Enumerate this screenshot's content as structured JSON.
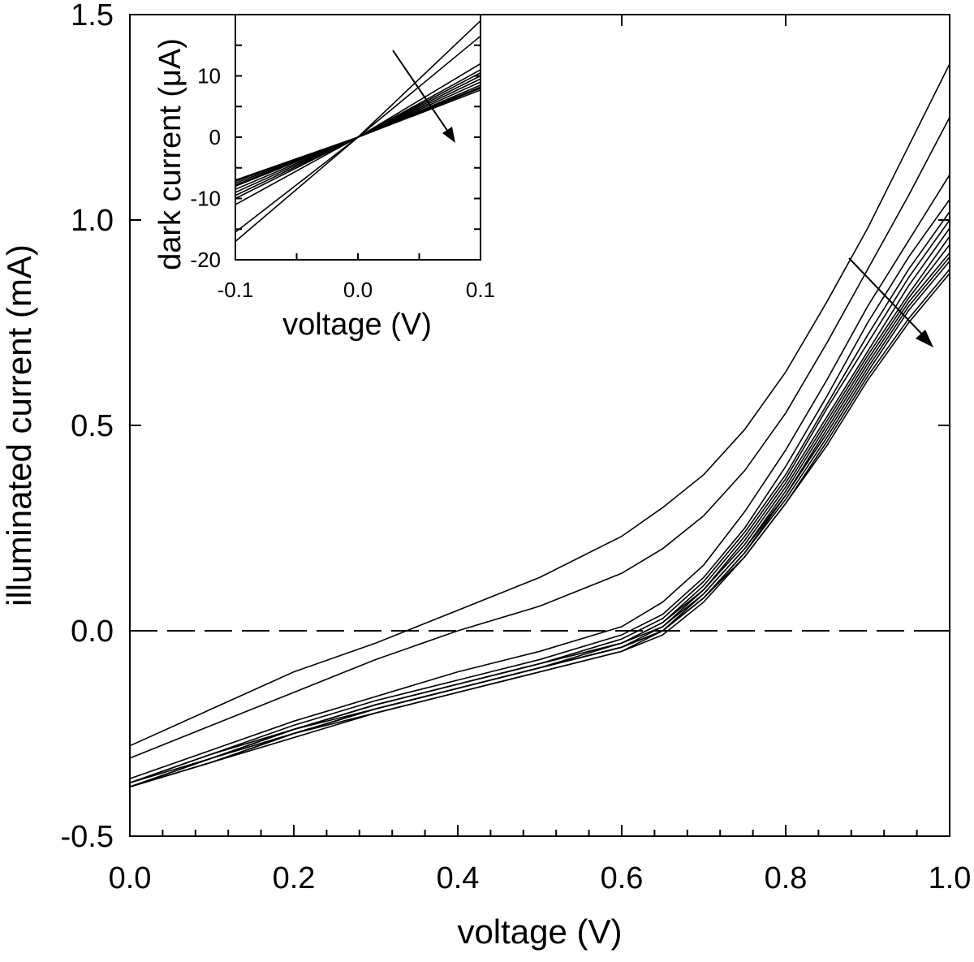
{
  "chart_data": [
    {
      "type": "line",
      "xlabel": "voltage (V)",
      "ylabel": "illuminated current (mA)",
      "xlim": [
        0.0,
        1.0
      ],
      "ylim": [
        -0.5,
        1.5
      ],
      "x_ticks": [
        "0.0",
        "0.2",
        "0.4",
        "0.6",
        "0.8",
        "1.0"
      ],
      "y_ticks": [
        "-0.5",
        "0.0",
        "0.5",
        "1.0",
        "1.5"
      ],
      "reference_line": {
        "y": 0.0,
        "style": "dashed"
      },
      "annotation": "arrow indicating trend across curves",
      "x": [
        0.0,
        0.1,
        0.2,
        0.3,
        0.4,
        0.5,
        0.6,
        0.65,
        0.7,
        0.75,
        0.8,
        0.85,
        0.9,
        0.95,
        1.0
      ],
      "series": [
        {
          "values": [
            -0.28,
            -0.19,
            -0.1,
            -0.03,
            0.05,
            0.13,
            0.23,
            0.3,
            0.38,
            0.49,
            0.63,
            0.8,
            0.98,
            1.18,
            1.38
          ]
        },
        {
          "values": [
            -0.31,
            -0.23,
            -0.15,
            -0.07,
            0.0,
            0.06,
            0.14,
            0.2,
            0.28,
            0.39,
            0.53,
            0.7,
            0.88,
            1.06,
            1.25
          ]
        },
        {
          "values": [
            -0.36,
            -0.29,
            -0.22,
            -0.16,
            -0.1,
            -0.05,
            0.01,
            0.07,
            0.16,
            0.29,
            0.44,
            0.61,
            0.79,
            0.95,
            1.11
          ]
        },
        {
          "values": [
            -0.37,
            -0.3,
            -0.23,
            -0.17,
            -0.12,
            -0.07,
            -0.01,
            0.04,
            0.13,
            0.25,
            0.4,
            0.57,
            0.75,
            0.91,
            1.05
          ]
        },
        {
          "values": [
            -0.37,
            -0.3,
            -0.24,
            -0.18,
            -0.13,
            -0.08,
            -0.02,
            0.03,
            0.12,
            0.24,
            0.38,
            0.55,
            0.72,
            0.88,
            1.02
          ]
        },
        {
          "values": [
            -0.37,
            -0.31,
            -0.24,
            -0.18,
            -0.13,
            -0.08,
            -0.03,
            0.02,
            0.11,
            0.23,
            0.37,
            0.54,
            0.7,
            0.86,
            1.0
          ]
        },
        {
          "values": [
            -0.38,
            -0.31,
            -0.24,
            -0.18,
            -0.13,
            -0.08,
            -0.03,
            0.02,
            0.1,
            0.22,
            0.36,
            0.52,
            0.68,
            0.84,
            0.98
          ]
        },
        {
          "values": [
            -0.38,
            -0.31,
            -0.24,
            -0.19,
            -0.14,
            -0.09,
            -0.03,
            0.01,
            0.1,
            0.21,
            0.35,
            0.51,
            0.67,
            0.82,
            0.96
          ]
        },
        {
          "values": [
            -0.38,
            -0.31,
            -0.25,
            -0.19,
            -0.14,
            -0.09,
            -0.04,
            0.01,
            0.09,
            0.2,
            0.34,
            0.5,
            0.66,
            0.81,
            0.94
          ]
        },
        {
          "values": [
            -0.38,
            -0.31,
            -0.25,
            -0.19,
            -0.14,
            -0.09,
            -0.04,
            0.0,
            0.09,
            0.2,
            0.33,
            0.49,
            0.65,
            0.8,
            0.92
          ]
        },
        {
          "values": [
            -0.38,
            -0.32,
            -0.25,
            -0.19,
            -0.14,
            -0.09,
            -0.04,
            0.0,
            0.08,
            0.19,
            0.33,
            0.48,
            0.64,
            0.79,
            0.91
          ]
        },
        {
          "values": [
            -0.38,
            -0.32,
            -0.25,
            -0.19,
            -0.14,
            -0.09,
            -0.04,
            0.0,
            0.08,
            0.19,
            0.32,
            0.47,
            0.63,
            0.78,
            0.9
          ]
        },
        {
          "values": [
            -0.38,
            -0.32,
            -0.25,
            -0.2,
            -0.15,
            -0.1,
            -0.05,
            0.0,
            0.08,
            0.18,
            0.31,
            0.46,
            0.62,
            0.76,
            0.88
          ]
        },
        {
          "values": [
            -0.38,
            -0.32,
            -0.26,
            -0.2,
            -0.15,
            -0.1,
            -0.05,
            -0.01,
            0.07,
            0.18,
            0.31,
            0.45,
            0.61,
            0.75,
            0.87
          ]
        }
      ]
    },
    {
      "type": "line",
      "xlabel": "voltage (V)",
      "ylabel": "dark current (μA)",
      "xlim": [
        -0.1,
        0.1
      ],
      "ylim": [
        -20,
        20
      ],
      "x_ticks": [
        "-0.1",
        "0.0",
        "0.1"
      ],
      "y_ticks": [
        "-20",
        "-10",
        "0",
        "10"
      ],
      "annotation": "arrow indicating trend across curves",
      "x": [
        -0.1,
        0.0,
        0.1
      ],
      "series": [
        {
          "values": [
            -17,
            0,
            19
          ]
        },
        {
          "values": [
            -15.5,
            0,
            16.5
          ]
        },
        {
          "values": [
            -11,
            0,
            12
          ]
        },
        {
          "values": [
            -10,
            0,
            11
          ]
        },
        {
          "values": [
            -9.5,
            0,
            10.5
          ]
        },
        {
          "values": [
            -9,
            0,
            10
          ]
        },
        {
          "values": [
            -8.5,
            0,
            9.5
          ]
        },
        {
          "values": [
            -8,
            0,
            9
          ]
        },
        {
          "values": [
            -7.8,
            0,
            8.5
          ]
        },
        {
          "values": [
            -7.5,
            0,
            8.2
          ]
        },
        {
          "values": [
            -7.2,
            0,
            8
          ]
        },
        {
          "values": [
            -7,
            0,
            7.7
          ]
        }
      ]
    }
  ]
}
